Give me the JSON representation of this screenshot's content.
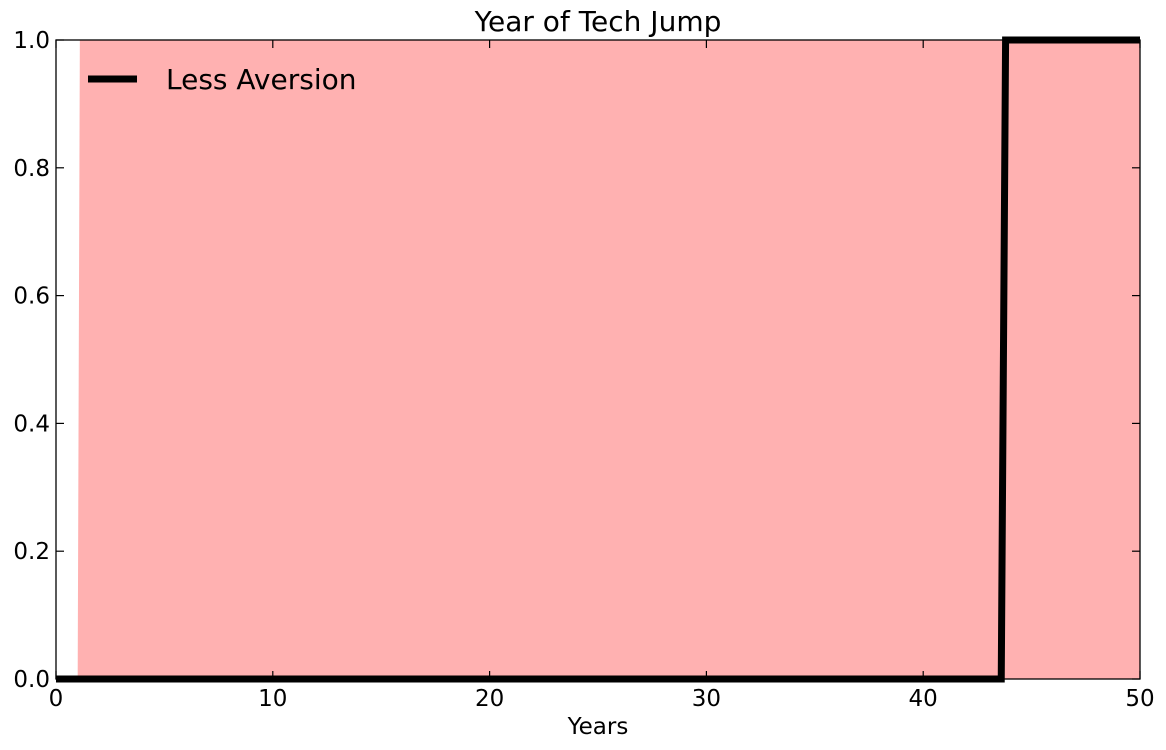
{
  "chart_data": {
    "type": "line",
    "title": "Year of Tech Jump",
    "xlabel": "Years",
    "ylabel": "",
    "xlim": [
      0,
      50
    ],
    "ylim": [
      0,
      1
    ],
    "x_ticks": [
      0,
      10,
      20,
      30,
      40,
      50
    ],
    "y_ticks": [
      0.0,
      0.2,
      0.4,
      0.6,
      0.8,
      1.0
    ],
    "x_tick_labels": [
      "0",
      "10",
      "20",
      "30",
      "40",
      "50"
    ],
    "y_tick_labels": [
      "0.0",
      "0.2",
      "0.4",
      "0.6",
      "0.8",
      "1.0"
    ],
    "grid": false,
    "legend_position": "top-left",
    "series": [
      {
        "name": "Less Aversion",
        "color": "#000000",
        "x": [
          0,
          43.6,
          43.8,
          50
        ],
        "y": [
          0,
          0,
          1,
          1
        ]
      }
    ],
    "shaded_band": {
      "color": "#ffb1b1",
      "x": [
        0,
        1.0,
        1.1,
        50
      ],
      "lower": [
        0,
        0,
        0,
        0
      ],
      "upper": [
        0,
        0,
        1,
        1
      ]
    }
  }
}
